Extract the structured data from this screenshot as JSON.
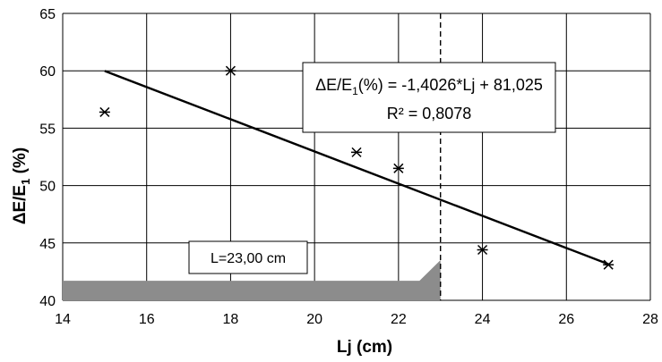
{
  "chart_data": {
    "type": "scatter",
    "xlabel": "Lj (cm)",
    "ylabel": "ΔE/E1 (%)",
    "xlim": [
      14,
      28
    ],
    "ylim": [
      40,
      65
    ],
    "x_ticks": [
      "14",
      "16",
      "18",
      "20",
      "22",
      "24",
      "26",
      "28"
    ],
    "y_ticks": [
      "40",
      "45",
      "50",
      "55",
      "60",
      "65"
    ],
    "grid": true,
    "series": [
      {
        "marker": "asterisk",
        "points": [
          {
            "x": 15,
            "y": 56.4
          },
          {
            "x": 18,
            "y": 60.0
          },
          {
            "x": 21,
            "y": 52.9
          },
          {
            "x": 22,
            "y": 51.5
          },
          {
            "x": 24,
            "y": 44.4
          },
          {
            "x": 27,
            "y": 43.1
          }
        ]
      }
    ],
    "trendline": {
      "type": "linear",
      "slope": -1.4026,
      "intercept": 81.025,
      "x_range": [
        15,
        27
      ],
      "equation_label": {
        "pre": "ΔE/E",
        "sub": "1",
        "post": "(%) = -1,4026*Lj + 81,025"
      },
      "r2_label": "R² = 0,8078"
    },
    "vertical_line": {
      "x": 23,
      "style": "dashed"
    },
    "shaded_region": {
      "description_label": "L=23,00 cm",
      "fill_color": "#8c8c8c",
      "x_range": [
        14,
        23
      ],
      "y_top": 41.7,
      "ramp_start_x": 22.5,
      "ramp_top_y": 43.5
    },
    "colors": {
      "grid": "#000000",
      "marker": "#000000",
      "line": "#000000",
      "shade": "#8c8c8c"
    }
  }
}
